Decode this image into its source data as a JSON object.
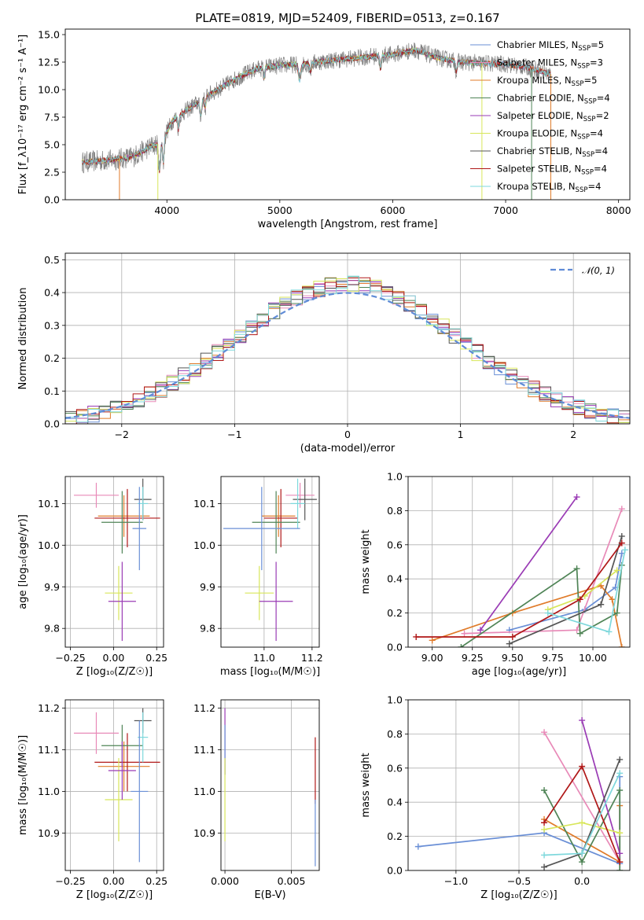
{
  "chart_data": [
    {
      "id": "spectrum",
      "type": "line",
      "title": "PLATE=0819, MJD=52409, FIBERID=0513, z=0.167",
      "xlabel": "wavelength [Angstrom, rest frame]",
      "ylabel": "Flux [f_λ10⁻¹⁷ erg cm⁻² s⁻¹ A⁻¹]",
      "xlim": [
        3100,
        8100
      ],
      "ylim": [
        0,
        15.5
      ],
      "xticks": [
        4000,
        5000,
        6000,
        7000,
        8000
      ],
      "yticks": [
        0.0,
        2.5,
        5.0,
        7.5,
        10.0,
        12.5,
        15.0
      ],
      "xticklabels": [
        "4000",
        "5000",
        "6000",
        "7000",
        "8000"
      ],
      "yticklabels": [
        "0.0",
        "2.5",
        "5.0",
        "7.5",
        "10.0",
        "12.5",
        "15.0"
      ],
      "legend_position": "right",
      "continuum": {
        "x": [
          3250,
          3500,
          3700,
          3850,
          3950,
          4050,
          4200,
          4350,
          4500,
          4650,
          4800,
          5000,
          5200,
          5400,
          5600,
          5800,
          6000,
          6200,
          6400,
          6600,
          6800,
          7000,
          7200,
          7400
        ],
        "y": [
          3.4,
          3.6,
          3.9,
          4.8,
          5.2,
          7.2,
          8.3,
          9.4,
          10.3,
          11.2,
          11.9,
          12.2,
          12.3,
          12.6,
          12.8,
          13.0,
          13.2,
          13.6,
          12.9,
          12.5,
          12.4,
          12.3,
          12.0,
          11.4
        ]
      },
      "series": [
        {
          "name": "Chabrier MILES, N_SSP=5",
          "label_main": "Chabrier MILES, N",
          "label_sub": "SSP",
          "label_tail": "=5",
          "color": "#6a8fd6",
          "xmax": 7400
        },
        {
          "name": "Salpeter MILES, N_SSP=3",
          "label_main": "Salpeter MILES, N",
          "label_sub": "SSP",
          "label_tail": "=3",
          "color": "#e88ab8",
          "xmax": 7400
        },
        {
          "name": "Kroupa MILES, N_SSP=5",
          "label_main": "Kroupa MILES, N",
          "label_sub": "SSP",
          "label_tail": "=5",
          "color": "#e07b2a",
          "xmax": 7400
        },
        {
          "name": "Chabrier ELODIE, N_SSP=4",
          "label_main": "Chabrier ELODIE, N",
          "label_sub": "SSP",
          "label_tail": "=4",
          "color": "#4f8456",
          "xmax": 6800
        },
        {
          "name": "Salpeter ELODIE, N_SSP=2",
          "label_main": "Salpeter ELODIE, N",
          "label_sub": "SSP",
          "label_tail": "=2",
          "color": "#9a3bb5",
          "xmax": 6800
        },
        {
          "name": "Kroupa ELODIE, N_SSP=4",
          "label_main": "Kroupa ELODIE, N",
          "label_sub": "SSP",
          "label_tail": "=4",
          "color": "#d8e65a",
          "xmax": 6800
        },
        {
          "name": "Chabrier STELIB, N_SSP=4",
          "label_main": "Chabrier STELIB, N",
          "label_sub": "SSP",
          "label_tail": "=4",
          "color": "#555555",
          "xmax": 7400
        },
        {
          "name": "Salpeter STELIB, N_SSP=4",
          "label_main": "Salpeter STELIB, N",
          "label_sub": "SSP",
          "label_tail": "=4",
          "color": "#b01818",
          "xmax": 7400
        },
        {
          "name": "Kroupa STELIB, N_SSP=4",
          "label_main": "Kroupa STELIB, N",
          "label_sub": "SSP",
          "label_tail": "=4",
          "color": "#7ed8dc",
          "xmax": 7400
        }
      ]
    },
    {
      "id": "residuals",
      "type": "line",
      "xlabel": "(data-model)/error",
      "ylabel": "Normed distribution",
      "xlim": [
        -2.5,
        2.5
      ],
      "ylim": [
        0,
        0.52
      ],
      "xticks": [
        -2,
        -1,
        0,
        1,
        2
      ],
      "xticklabels": [
        "−2",
        "−1",
        "0",
        "1",
        "2"
      ],
      "yticks": [
        0.0,
        0.1,
        0.2,
        0.3,
        0.4,
        0.5
      ],
      "yticklabels": [
        "0.0",
        "0.1",
        "0.2",
        "0.3",
        "0.4",
        "0.5"
      ],
      "grid": true,
      "legend_position": "top-right",
      "legend_entry": "𝒩(0, 1)",
      "gaussian": {
        "mean": 0,
        "sigma": 1,
        "color": "#5f8bd6",
        "style": "dashed"
      },
      "bin_width": 0.1,
      "bins_start": -2.5,
      "histogram_color_order": [
        "#6a8fd6",
        "#e88ab8",
        "#e07b2a",
        "#4f8456",
        "#9a3bb5",
        "#d8e65a",
        "#555555",
        "#b01818",
        "#7ed8dc"
      ]
    },
    {
      "id": "age-vs-Z",
      "type": "scatter",
      "xlabel": "Z [log₁₀(Z/Z☉)]",
      "ylabel": "age  [log₁₀(age/yr)]",
      "xlim": [
        -0.28,
        0.29
      ],
      "ylim": [
        9.755,
        10.165
      ],
      "xticks": [
        -0.25,
        0.0,
        0.25
      ],
      "xticklabels": [
        "−0.25",
        "0.00",
        "0.25"
      ],
      "yticks": [
        9.8,
        9.9,
        10.0,
        10.1
      ],
      "yticklabels": [
        "9.8",
        "9.9",
        "10.0",
        "10.1"
      ],
      "grid": true,
      "errorbars": [
        {
          "color": "#e88ab8",
          "x": -0.1,
          "xerr": 0.13,
          "y": 10.12,
          "yerr": 0.03
        },
        {
          "color": "#e07b2a",
          "x": 0.06,
          "xerr": 0.15,
          "y": 10.07,
          "yerr": 0.05
        },
        {
          "color": "#b01818",
          "x": 0.08,
          "xerr": 0.19,
          "y": 10.065,
          "yerr": 0.07
        },
        {
          "color": "#4f8456",
          "x": 0.05,
          "xerr": 0.12,
          "y": 10.055,
          "yerr": 0.075
        },
        {
          "color": "#555555",
          "x": 0.17,
          "xerr": 0.05,
          "y": 10.11,
          "yerr": 0.05
        },
        {
          "color": "#7ed8dc",
          "x": 0.17,
          "xerr": 0.03,
          "y": 10.1,
          "yerr": 0.04
        },
        {
          "color": "#6a8fd6",
          "x": 0.15,
          "xerr": 0.04,
          "y": 10.04,
          "yerr": 0.1
        },
        {
          "color": "#d8e65a",
          "x": 0.03,
          "xerr": 0.08,
          "y": 9.885,
          "yerr": 0.065
        },
        {
          "color": "#9a3bb5",
          "x": 0.05,
          "xerr": 0.08,
          "y": 9.865,
          "yerr": 0.095
        }
      ]
    },
    {
      "id": "age-vs-mass",
      "type": "scatter",
      "xlabel": "mass [log₁₀(M/M☉)]",
      "ylabel": "",
      "xlim": [
        10.82,
        11.23
      ],
      "ylim": [
        9.755,
        10.165
      ],
      "xticks": [
        11.0,
        11.2
      ],
      "xticklabels": [
        "11.0",
        "11.2"
      ],
      "yticks": [
        9.8,
        9.9,
        10.0,
        10.1
      ],
      "yticklabels": [
        "9.8",
        "9.9",
        "10.0",
        "10.1"
      ],
      "grid": true,
      "errorbars": [
        {
          "color": "#e88ab8",
          "x": 11.15,
          "xerr": 0.06,
          "y": 10.12,
          "yerr": 0.03
        },
        {
          "color": "#e07b2a",
          "x": 11.06,
          "xerr": 0.07,
          "y": 10.07,
          "yerr": 0.05
        },
        {
          "color": "#b01818",
          "x": 11.07,
          "xerr": 0.07,
          "y": 10.065,
          "yerr": 0.07
        },
        {
          "color": "#4f8456",
          "x": 11.05,
          "xerr": 0.1,
          "y": 10.055,
          "yerr": 0.075
        },
        {
          "color": "#555555",
          "x": 11.17,
          "xerr": 0.05,
          "y": 10.11,
          "yerr": 0.05
        },
        {
          "color": "#7ed8dc",
          "x": 11.14,
          "xerr": 0.03,
          "y": 10.1,
          "yerr": 0.06
        },
        {
          "color": "#6a8fd6",
          "x": 10.99,
          "xerr": 0.16,
          "y": 10.04,
          "yerr": 0.1
        },
        {
          "color": "#d8e65a",
          "x": 10.98,
          "xerr": 0.06,
          "y": 9.885,
          "yerr": 0.065
        },
        {
          "color": "#9a3bb5",
          "x": 11.05,
          "xerr": 0.07,
          "y": 9.865,
          "yerr": 0.095
        }
      ]
    },
    {
      "id": "mass-weight-vs-age",
      "type": "line",
      "xlabel": "age  [log₁₀(age/yr)]",
      "ylabel": "mass weight",
      "xlim": [
        8.85,
        10.23
      ],
      "ylim": [
        0,
        1
      ],
      "xticks": [
        9.0,
        9.25,
        9.5,
        9.75,
        10.0
      ],
      "xticklabels": [
        "9.00",
        "9.25",
        "9.50",
        "9.75",
        "10.00"
      ],
      "yticks": [
        0.0,
        0.2,
        0.4,
        0.6,
        0.8,
        1.0
      ],
      "yticklabels": [
        "0.0",
        "0.2",
        "0.4",
        "0.6",
        "0.8",
        "1.0"
      ],
      "grid": true,
      "series": [
        {
          "color": "#6a8fd6",
          "x": [
            9.48,
            9.95,
            10.14,
            10.18
          ],
          "y": [
            0.1,
            0.22,
            0.35,
            0.55
          ]
        },
        {
          "color": "#e88ab8",
          "x": [
            9.2,
            9.9,
            10.18
          ],
          "y": [
            0.08,
            0.1,
            0.81
          ]
        },
        {
          "color": "#e07b2a",
          "x": [
            9.0,
            9.5,
            10.05,
            10.12,
            10.18
          ],
          "y": [
            0.04,
            0.2,
            0.36,
            0.28,
            0.0
          ]
        },
        {
          "color": "#4f8456",
          "x": [
            9.18,
            9.9,
            9.92,
            10.15,
            10.18
          ],
          "y": [
            0.0,
            0.46,
            0.08,
            0.2,
            0.48
          ]
        },
        {
          "color": "#9a3bb5",
          "x": [
            9.3,
            9.9
          ],
          "y": [
            0.1,
            0.88
          ]
        },
        {
          "color": "#d8e65a",
          "x": [
            9.72,
            9.95,
            10.15
          ],
          "y": [
            0.22,
            0.3,
            0.45
          ]
        },
        {
          "color": "#555555",
          "x": [
            9.48,
            10.05,
            10.18
          ],
          "y": [
            0.02,
            0.25,
            0.65
          ]
        },
        {
          "color": "#b01818",
          "x": [
            8.9,
            9.5,
            9.92,
            10.18
          ],
          "y": [
            0.06,
            0.06,
            0.28,
            0.61
          ]
        },
        {
          "color": "#7ed8dc",
          "x": [
            9.72,
            10.1,
            10.2
          ],
          "y": [
            0.2,
            0.09,
            0.57
          ]
        }
      ]
    },
    {
      "id": "mass-vs-Z",
      "type": "scatter",
      "xlabel": "Z [log₁₀(Z/Z☉)]",
      "ylabel": "mass [log₁₀(M/M☉)]",
      "xlim": [
        -0.28,
        0.29
      ],
      "ylim": [
        10.81,
        11.22
      ],
      "xticks": [
        -0.25,
        0.0,
        0.25
      ],
      "xticklabels": [
        "−0.25",
        "0.00",
        "0.25"
      ],
      "yticks": [
        10.9,
        11.0,
        11.1,
        11.2
      ],
      "yticklabels": [
        "10.9",
        "11.0",
        "11.1",
        "11.2"
      ],
      "grid": true,
      "errorbars": [
        {
          "color": "#e88ab8",
          "x": -0.1,
          "xerr": 0.13,
          "y": 11.14,
          "yerr": 0.05
        },
        {
          "color": "#e07b2a",
          "x": 0.06,
          "xerr": 0.15,
          "y": 11.06,
          "yerr": 0.06
        },
        {
          "color": "#b01818",
          "x": 0.08,
          "xerr": 0.19,
          "y": 11.07,
          "yerr": 0.07
        },
        {
          "color": "#4f8456",
          "x": 0.05,
          "xerr": 0.12,
          "y": 11.11,
          "yerr": 0.05
        },
        {
          "color": "#555555",
          "x": 0.17,
          "xerr": 0.05,
          "y": 11.17,
          "yerr": 0.03
        },
        {
          "color": "#7ed8dc",
          "x": 0.17,
          "xerr": 0.03,
          "y": 11.13,
          "yerr": 0.06
        },
        {
          "color": "#6a8fd6",
          "x": 0.15,
          "xerr": 0.05,
          "y": 11.0,
          "yerr": 0.17
        },
        {
          "color": "#d8e65a",
          "x": 0.03,
          "xerr": 0.08,
          "y": 10.98,
          "yerr": 0.1
        },
        {
          "color": "#9a3bb5",
          "x": 0.05,
          "xerr": 0.08,
          "y": 11.05,
          "yerr": 0.07
        }
      ]
    },
    {
      "id": "mass-vs-EBV",
      "type": "scatter",
      "xlabel": "E(B-V)",
      "ylabel": "",
      "xlim": [
        -0.0003,
        0.0071
      ],
      "ylim": [
        10.81,
        11.22
      ],
      "xticks": [
        0.0,
        0.005
      ],
      "xticklabels": [
        "0.000",
        "0.005"
      ],
      "yticks": [
        10.9,
        11.0,
        11.1,
        11.2
      ],
      "yticklabels": [
        "10.9",
        "11.0",
        "11.1",
        "11.2"
      ],
      "grid": true,
      "errorbars": [
        {
          "color": "#9a3bb5",
          "x": 0.0,
          "xerr": 0,
          "y": 11.12,
          "yerr": 0.08
        },
        {
          "color": "#6a8fd6",
          "x": 0.0,
          "xerr": 0,
          "y": 11.1,
          "yerr": 0.06
        },
        {
          "color": "#d8e65a",
          "x": 0.0,
          "xerr": 0,
          "y": 10.98,
          "yerr": 0.1
        },
        {
          "color": "#b01818",
          "x": 0.0068,
          "xerr": 0,
          "y": 11.05,
          "yerr": 0.08
        },
        {
          "color": "#6a8fd6",
          "x": 0.0068,
          "xerr": 0,
          "y": 10.9,
          "yerr": 0.08
        }
      ]
    },
    {
      "id": "mass-weight-vs-Z",
      "type": "line",
      "xlabel": "Z [log₁₀(Z/Z☉)]",
      "ylabel": "mass weight",
      "xlim": [
        -1.38,
        0.38
      ],
      "ylim": [
        0,
        1
      ],
      "xticks": [
        -1.0,
        -0.5,
        0.0
      ],
      "xticklabels": [
        "−1.0",
        "−0.5",
        "0.0"
      ],
      "yticks": [
        0.0,
        0.2,
        0.4,
        0.6,
        0.8,
        1.0
      ],
      "yticklabels": [
        "0.0",
        "0.2",
        "0.4",
        "0.6",
        "0.8",
        "1.0"
      ],
      "grid": true,
      "series": [
        {
          "color": "#6a8fd6",
          "x": [
            -1.3,
            -0.3,
            0.3,
            0.3
          ],
          "y": [
            0.14,
            0.22,
            0.04,
            0.55
          ]
        },
        {
          "color": "#e88ab8",
          "x": [
            -0.3,
            0.3
          ],
          "y": [
            0.81,
            0.05
          ]
        },
        {
          "color": "#e07b2a",
          "x": [
            -0.3,
            0.3,
            0.3
          ],
          "y": [
            0.3,
            0.05,
            0.38
          ]
        },
        {
          "color": "#4f8456",
          "x": [
            -0.3,
            0.0,
            0.3,
            0.3
          ],
          "y": [
            0.47,
            0.05,
            0.47,
            0.0
          ]
        },
        {
          "color": "#9a3bb5",
          "x": [
            0.0,
            0.3
          ],
          "y": [
            0.88,
            0.1
          ]
        },
        {
          "color": "#d8e65a",
          "x": [
            -0.3,
            0.0,
            0.3
          ],
          "y": [
            0.24,
            0.28,
            0.22
          ]
        },
        {
          "color": "#555555",
          "x": [
            -0.3,
            0.0,
            0.3
          ],
          "y": [
            0.02,
            0.1,
            0.65
          ]
        },
        {
          "color": "#b01818",
          "x": [
            -0.3,
            0.0,
            0.3
          ],
          "y": [
            0.28,
            0.61,
            0.05
          ]
        },
        {
          "color": "#7ed8dc",
          "x": [
            -0.3,
            0.0,
            0.3
          ],
          "y": [
            0.09,
            0.1,
            0.57
          ]
        }
      ]
    }
  ]
}
